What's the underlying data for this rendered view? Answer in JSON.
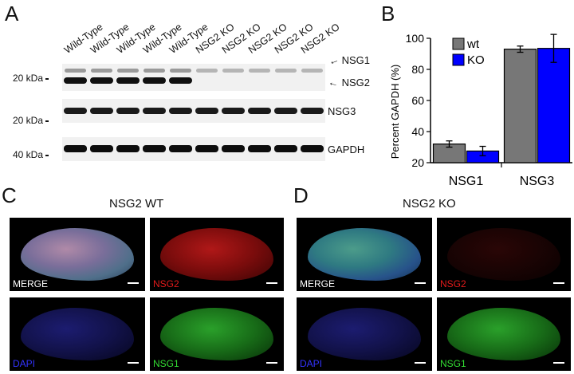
{
  "panels": {
    "a": "A",
    "b": "B",
    "c": "C",
    "d": "D"
  },
  "blot": {
    "lanes": [
      "Wild-Type",
      "Wild-Type",
      "Wild-Type",
      "Wild-Type",
      "Wild-Type",
      "NSG2 KO",
      "NSG2 KO",
      "NSG2 KO",
      "NSG2 KO",
      "NSG2 KO"
    ],
    "markers": [
      "20 kDa",
      "20 kDa",
      "40 kDa"
    ],
    "labels": {
      "nsg1": "NSG1",
      "nsg2": "NSG2",
      "nsg3": "NSG3",
      "gapdh": "GAPDH"
    },
    "arrow": "←"
  },
  "chart_data": {
    "type": "bar",
    "categories": [
      "NSG1",
      "NSG3"
    ],
    "series": [
      {
        "name": "wt",
        "values": [
          32,
          93
        ],
        "errors": [
          2,
          2
        ],
        "color": "#777777"
      },
      {
        "name": "KO",
        "values": [
          27.5,
          93.5
        ],
        "errors": [
          3,
          9
        ],
        "color": "#0000ff"
      }
    ],
    "ylabel": "Percent GAPDH (%)",
    "ylim": [
      20,
      100
    ],
    "yticks": [
      20,
      40,
      60,
      80,
      100
    ],
    "legend": "top-left",
    "grid": false
  },
  "sections": {
    "wt_title": "NSG2 WT",
    "ko_title": "NSG2 KO",
    "labels": [
      "MERGE",
      "NSG2",
      "DAPI",
      "NSG1"
    ]
  },
  "colors": {
    "merge": "#ffffff",
    "nsg2": "#e21a1a",
    "dapi": "#3333ff",
    "nsg1": "#33dd33"
  }
}
